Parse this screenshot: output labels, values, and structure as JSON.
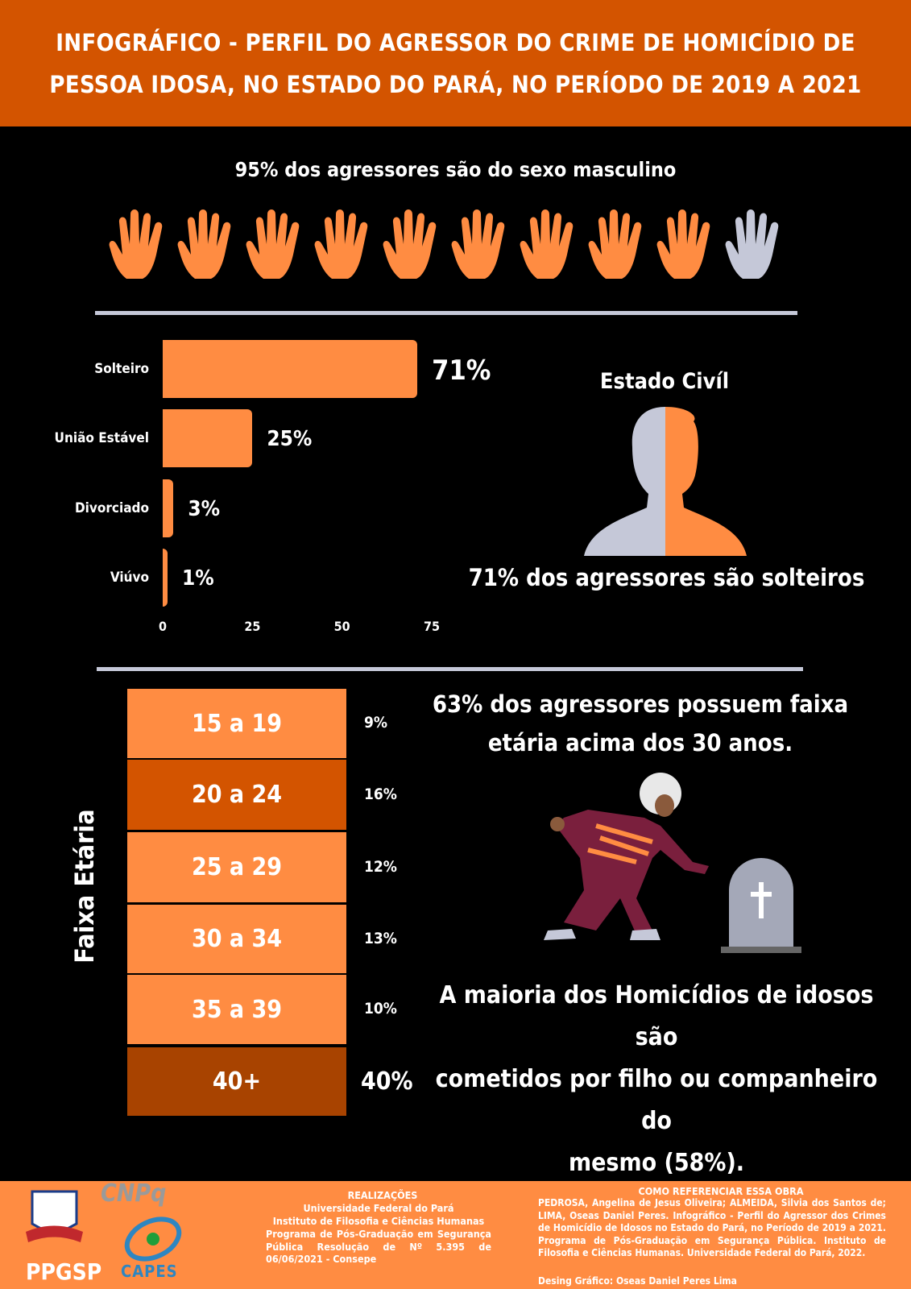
{
  "header": {
    "title_line1": "INFOGRÁFICO - PERFIL DO AGRESSOR DO CRIME DE HOMICÍDIO DE",
    "title_line2": "PESSOA IDOSA, NO ESTADO DO PARÁ, NO PERÍODO DE 2019 A 2021"
  },
  "colors": {
    "header": "#d35400",
    "accent": "#ff8c42",
    "dark_orange": "#d35400",
    "darker_orange": "#a84300",
    "grey": "#c5c8d8",
    "background": "#000000"
  },
  "gender": {
    "text": "95% dos agressores são do sexo masculino",
    "icons_total": 10,
    "icons_highlighted": 9,
    "icon": "hand-icon"
  },
  "chart_data": {
    "type": "bar",
    "orientation": "horizontal",
    "categories": [
      "Solteiro",
      "União Estável",
      "Divorciado",
      "Viúvo"
    ],
    "values": [
      71,
      25,
      3,
      1
    ],
    "value_labels": [
      "71%",
      "25%",
      "3%",
      "1%"
    ],
    "xticks": [
      "0",
      "25",
      "50",
      "75"
    ],
    "xlim": [
      0,
      75
    ],
    "grid": false
  },
  "civil": {
    "title": "Estado Civíl",
    "caption": "71% dos agressores são solteiros",
    "icon": "person-silhouette-icon"
  },
  "age": {
    "label": "Faixa Etária",
    "rows": [
      {
        "range": "15 a 19",
        "pct": "9%"
      },
      {
        "range": "20 a 24",
        "pct": "16%"
      },
      {
        "range": "25 a 29",
        "pct": "12%"
      },
      {
        "range": "30 a 34",
        "pct": "13%"
      },
      {
        "range": "35 a 39",
        "pct": "10%"
      },
      {
        "range": "40+",
        "pct": "40%"
      }
    ],
    "summary_line1": "63% dos agressores possuem faixa",
    "summary_line2": "etária acima dos 30 anos."
  },
  "relation": {
    "line1": "A maioria dos Homicídios de idosos são",
    "line2": "cometidos por filho ou companheiro do",
    "line3": "mesmo (58%)."
  },
  "footer": {
    "logos": {
      "ufpa": "UNIVERSIDADE FEDERAL DO PARÁ",
      "ppgsp": "PPGSP",
      "cnpq": "CNPq",
      "capes": "CAPES"
    },
    "realizacoes_title": "REALIZAÇÕES",
    "realizacoes_lines": [
      "Universidade Federal do Pará",
      "Instituto de Filosofia e Ciências Humanas",
      "Programa de Pós-Graduação em Segurança Pública Resolução de Nº 5.395 de 06/06/2021 - Consepe"
    ],
    "ref_title": "COMO REFERENCIAR ESSA OBRA",
    "ref_text": "PEDROSA, Angelina de Jesus Oliveira; ALMEIDA, Silvia dos Santos de; LIMA, Oseas Daniel Peres. Infográfico - Perfil do Agressor dos Crimes de Homicídio de Idosos no Estado do Pará, no Período de 2019 a 2021. Programa de Pós-Graduação em Segurança Pública. Instituto de Filosofia e Ciências Humanas. Universidade Federal do Pará, 2022.",
    "design_credit": "Desing Gráfico: Oseas Daniel Peres Lima"
  }
}
